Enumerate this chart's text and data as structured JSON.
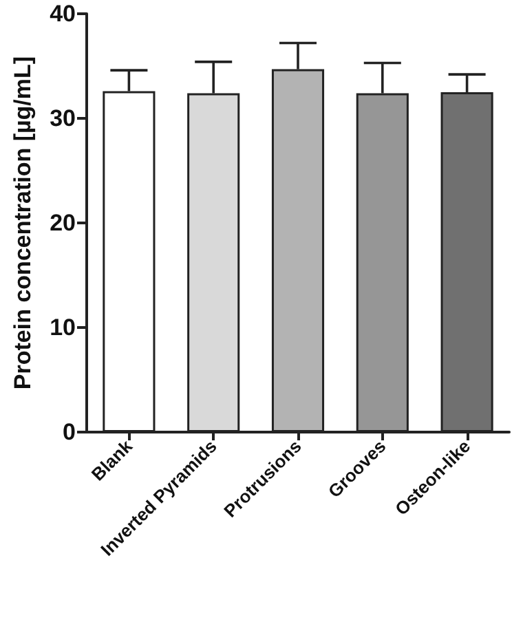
{
  "chart_data": {
    "type": "bar",
    "ylabel": "Protein concentration [µg/mL]",
    "categories": [
      "Blank",
      "Inverted Pyramids",
      "Protrusions",
      "Grooves",
      "Osteon-like"
    ],
    "values": [
      32.6,
      32.4,
      34.7,
      32.4,
      32.5
    ],
    "errors": [
      2.0,
      3.0,
      2.5,
      2.9,
      1.7
    ],
    "colors": [
      "#ffffff",
      "#d9d9d9",
      "#b3b3b3",
      "#969696",
      "#707070"
    ],
    "ylim": [
      0,
      40
    ],
    "yticks": [
      0,
      10,
      20,
      30,
      40
    ],
    "grid": false
  }
}
